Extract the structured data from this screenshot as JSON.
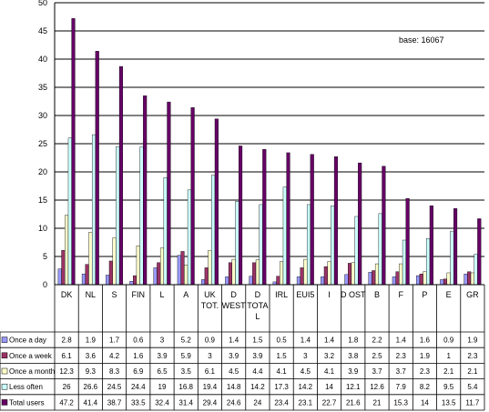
{
  "chart_data": {
    "type": "bar",
    "annotation": "base: 16067",
    "ylim": [
      0,
      50
    ],
    "yticks": [
      0,
      5,
      10,
      15,
      20,
      25,
      30,
      35,
      40,
      45,
      50
    ],
    "grid": true,
    "legend": "table-left",
    "categories": [
      [
        "DK"
      ],
      [
        "NL"
      ],
      [
        "S"
      ],
      [
        "FIN"
      ],
      [
        "L"
      ],
      [
        "A"
      ],
      [
        "UK",
        "TOT."
      ],
      [
        "D",
        "WEST"
      ],
      [
        "D",
        "TOTA",
        "L"
      ],
      [
        "IRL"
      ],
      [
        "EUI5"
      ],
      [
        "I"
      ],
      [
        "D OST"
      ],
      [
        "B"
      ],
      [
        "F"
      ],
      [
        "P"
      ],
      [
        "E"
      ],
      [
        "GR"
      ]
    ],
    "series": [
      {
        "name": "Once a day",
        "color": "#9999ff",
        "values": [
          2.8,
          1.9,
          1.7,
          0.6,
          3,
          5.2,
          0.9,
          1.4,
          1.5,
          0.5,
          1.4,
          1.4,
          1.8,
          2.2,
          1.4,
          1.6,
          0.9,
          1.9
        ],
        "labels": [
          "2.8",
          "1.9",
          "1.7",
          "0.6",
          "3",
          "5.2",
          "0.9",
          "1.4",
          "1.5",
          "0.5",
          "1.4",
          "1.4",
          "1.8",
          "2.2",
          "1.4",
          "1.6",
          "0.9",
          "1.9"
        ]
      },
      {
        "name": "Once a week",
        "color": "#993366",
        "values": [
          6.1,
          3.6,
          4.2,
          1.6,
          3.9,
          5.9,
          3,
          3.9,
          3.9,
          1.5,
          3,
          3.2,
          3.8,
          2.5,
          2.3,
          1.9,
          1,
          2.3
        ],
        "labels": [
          "6.1",
          "3.6",
          "4.2",
          "1.6",
          "3.9",
          "5.9",
          "3",
          "3.9",
          "3.9",
          "1.5",
          "3",
          "3.2",
          "3.8",
          "2.5",
          "2.3",
          "1.9",
          "1",
          "2.3"
        ]
      },
      {
        "name": "Once a month",
        "color": "#ffffcc",
        "values": [
          12.3,
          9.3,
          8.3,
          6.9,
          6.5,
          3.5,
          6.1,
          4.5,
          4.4,
          4.1,
          4.5,
          4.1,
          3.9,
          3.7,
          3.7,
          2.3,
          2.1,
          2.1
        ],
        "labels": [
          "12.3",
          "9.3",
          "8.3",
          "6.9",
          "6.5",
          "3.5",
          "6.1",
          "4.5",
          "4.4",
          "4.1",
          "4.5",
          "4.1",
          "3.9",
          "3.7",
          "3.7",
          "2.3",
          "2.1",
          "2.1"
        ]
      },
      {
        "name": "Less often",
        "color": "#ccffff",
        "values": [
          26,
          26.6,
          24.5,
          24.4,
          19,
          16.8,
          19.4,
          14.8,
          14.2,
          17.3,
          14.2,
          14,
          12.1,
          12.6,
          7.9,
          8.2,
          9.5,
          5.4
        ],
        "labels": [
          "26",
          "26.6",
          "24.5",
          "24.4",
          "19",
          "16.8",
          "19.4",
          "14.8",
          "14.2",
          "17.3",
          "14.2",
          "14",
          "12.1",
          "12.6",
          "7.9",
          "8.2",
          "9.5",
          "5.4"
        ]
      },
      {
        "name": "Total users",
        "color": "#660066",
        "values": [
          47.2,
          41.4,
          38.7,
          33.5,
          32.4,
          31.4,
          29.4,
          24.6,
          24,
          23.4,
          23.1,
          22.7,
          21.6,
          21,
          15.3,
          14,
          13.5,
          11.7
        ],
        "labels": [
          "47.2",
          "41.4",
          "38.7",
          "33.5",
          "32.4",
          "31.4",
          "29.4",
          "24.6",
          "24",
          "23.4",
          "23.1",
          "22.7",
          "21.6",
          "21",
          "15.3",
          "14",
          "13.5",
          "11.7"
        ]
      }
    ]
  }
}
